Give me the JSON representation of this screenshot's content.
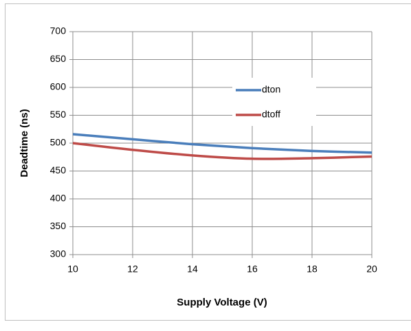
{
  "chart_data": {
    "type": "line",
    "x_label": "Supply Voltage (V)",
    "y_label": "Deadtime (ns)",
    "x": [
      10,
      12,
      14,
      16,
      18,
      20
    ],
    "series": [
      {
        "name": "dton",
        "color": "#4a7ebb",
        "values": [
          516,
          507,
          498,
          491,
          486,
          483
        ]
      },
      {
        "name": "dtoff",
        "color": "#be4b48",
        "values": [
          500,
          488,
          478,
          472,
          473,
          476
        ]
      }
    ],
    "xlim": [
      10,
      20
    ],
    "xticks": [
      10,
      12,
      14,
      16,
      18,
      20
    ],
    "ylim": [
      300,
      700
    ],
    "yticks": [
      300,
      350,
      400,
      450,
      500,
      550,
      600,
      650,
      700
    ],
    "grid": true,
    "legend": "inside-upper-right"
  }
}
